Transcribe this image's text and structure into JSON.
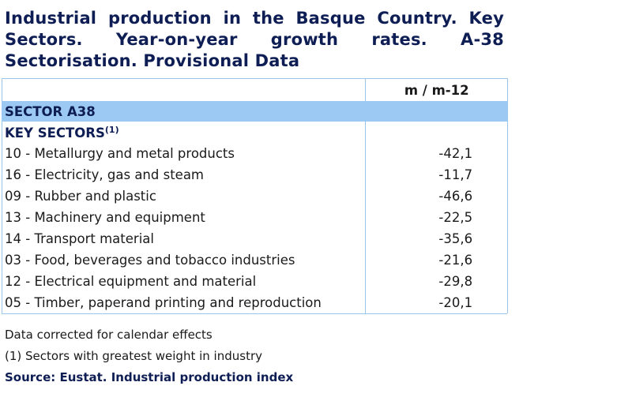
{
  "title": "Industrial production in the Basque Country. Key Sectors. Year-on-year growth rates. A-38 Sectorisation. Provisional Data",
  "table": {
    "column_header": "m / m-12",
    "sector_label": "SECTOR A38",
    "key_sectors_label": "KEY SECTORS",
    "key_sectors_note": "(1)",
    "rows": [
      {
        "label": "10 - Metallurgy and metal products",
        "value": "-42,1"
      },
      {
        "label": "16 - Electricity, gas and steam",
        "value": "-11,7"
      },
      {
        "label": "09 - Rubber and plastic",
        "value": "-46,6"
      },
      {
        "label": "13 - Machinery and equipment",
        "value": "-22,5"
      },
      {
        "label": "14 - Transport material",
        "value": "-35,6"
      },
      {
        "label": "03 - Food, beverages and tobacco industries",
        "value": "-21,6"
      },
      {
        "label": "12 - Electrical equipment and material",
        "value": "-29,8"
      },
      {
        "label": "05 - Timber, paperand printing and reproduction",
        "value": "-20,1"
      }
    ]
  },
  "notes": {
    "calendar": "Data corrected for calendar effects",
    "footnote": "(1) Sectors with greatest weight in industry",
    "source": "Source: Eustat. Industrial production index"
  },
  "colors": {
    "title": "#0e1e55",
    "sector_band": "#9cc9f3",
    "border": "#9cc5ea"
  }
}
